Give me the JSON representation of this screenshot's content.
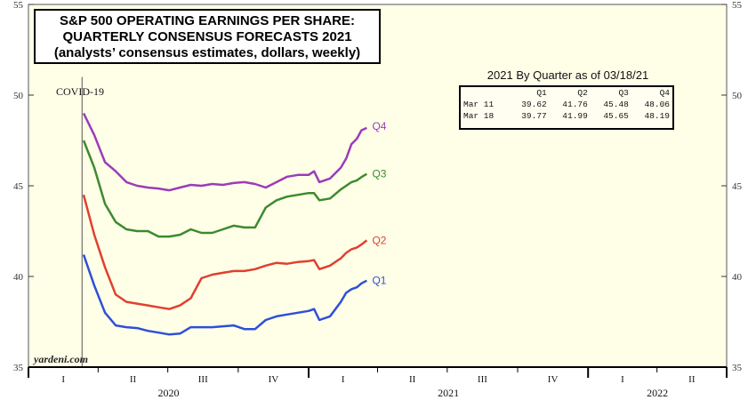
{
  "title_lines": [
    "S&P 500 OPERATING EARNINGS PER SHARE:",
    "QUARTERLY CONSENSUS FORECASTS 2021",
    "(analysts’ consensus estimates, dollars, weekly)"
  ],
  "annotation": "COVID-19",
  "watermark": "yardeni.com",
  "table": {
    "title": "2021 By Quarter as of 03/18/21",
    "headers": [
      "",
      "Q1",
      "Q2",
      "Q3",
      "Q4"
    ],
    "rows": [
      [
        "Mar 11",
        "39.62",
        "41.76",
        "45.48",
        "48.06"
      ],
      [
        "Mar 18",
        "39.77",
        "41.99",
        "45.65",
        "48.19"
      ]
    ]
  },
  "colors": {
    "background": "#FFFFE8",
    "Q1": "#2E4FD8",
    "Q2": "#E0402E",
    "Q3": "#3C8A2E",
    "Q4": "#9B3CB8"
  },
  "chart_data": {
    "type": "line",
    "ylim": [
      35,
      55
    ],
    "yticks": [
      35,
      40,
      45,
      50,
      55
    ],
    "grid": false,
    "x_quarters": [
      "I",
      "II",
      "III",
      "IV",
      "I",
      "II",
      "III",
      "IV",
      "I",
      "II"
    ],
    "x_years": [
      "2020",
      "2021",
      "2022"
    ],
    "covid_line_date": "2020-03-11",
    "series": [
      {
        "name": "Q4",
        "points": [
          [
            "2020-03-13",
            49.0
          ],
          [
            "2020-03-27",
            47.8
          ],
          [
            "2020-04-10",
            46.3
          ],
          [
            "2020-04-24",
            45.8
          ],
          [
            "2020-05-08",
            45.2
          ],
          [
            "2020-05-22",
            45.0
          ],
          [
            "2020-06-05",
            44.9
          ],
          [
            "2020-06-19",
            44.85
          ],
          [
            "2020-07-03",
            44.75
          ],
          [
            "2020-07-17",
            44.9
          ],
          [
            "2020-07-31",
            45.05
          ],
          [
            "2020-08-14",
            45.0
          ],
          [
            "2020-08-28",
            45.1
          ],
          [
            "2020-09-11",
            45.05
          ],
          [
            "2020-09-25",
            45.15
          ],
          [
            "2020-10-09",
            45.2
          ],
          [
            "2020-10-23",
            45.1
          ],
          [
            "2020-11-06",
            44.9
          ],
          [
            "2020-11-20",
            45.2
          ],
          [
            "2020-12-04",
            45.5
          ],
          [
            "2020-12-18",
            45.6
          ],
          [
            "2021-01-01",
            45.6
          ],
          [
            "2021-01-08",
            45.8
          ],
          [
            "2021-01-15",
            45.2
          ],
          [
            "2021-01-29",
            45.4
          ],
          [
            "2021-02-12",
            46.0
          ],
          [
            "2021-02-19",
            46.5
          ],
          [
            "2021-02-26",
            47.3
          ],
          [
            "2021-03-05",
            47.6
          ],
          [
            "2021-03-11",
            48.06
          ],
          [
            "2021-03-18",
            48.19
          ]
        ]
      },
      {
        "name": "Q3",
        "points": [
          [
            "2020-03-13",
            47.5
          ],
          [
            "2020-03-27",
            46.0
          ],
          [
            "2020-04-10",
            44.0
          ],
          [
            "2020-04-24",
            43.0
          ],
          [
            "2020-05-08",
            42.6
          ],
          [
            "2020-05-22",
            42.5
          ],
          [
            "2020-06-05",
            42.5
          ],
          [
            "2020-06-19",
            42.2
          ],
          [
            "2020-07-03",
            42.2
          ],
          [
            "2020-07-17",
            42.3
          ],
          [
            "2020-07-31",
            42.6
          ],
          [
            "2020-08-14",
            42.4
          ],
          [
            "2020-08-28",
            42.4
          ],
          [
            "2020-09-11",
            42.6
          ],
          [
            "2020-09-25",
            42.8
          ],
          [
            "2020-10-09",
            42.7
          ],
          [
            "2020-10-23",
            42.7
          ],
          [
            "2020-11-06",
            43.8
          ],
          [
            "2020-11-20",
            44.2
          ],
          [
            "2020-12-04",
            44.4
          ],
          [
            "2020-12-18",
            44.5
          ],
          [
            "2021-01-01",
            44.6
          ],
          [
            "2021-01-08",
            44.6
          ],
          [
            "2021-01-15",
            44.2
          ],
          [
            "2021-01-29",
            44.3
          ],
          [
            "2021-02-12",
            44.8
          ],
          [
            "2021-02-19",
            45.0
          ],
          [
            "2021-02-26",
            45.2
          ],
          [
            "2021-03-05",
            45.3
          ],
          [
            "2021-03-11",
            45.48
          ],
          [
            "2021-03-18",
            45.65
          ]
        ]
      },
      {
        "name": "Q2",
        "points": [
          [
            "2020-03-13",
            44.5
          ],
          [
            "2020-03-27",
            42.3
          ],
          [
            "2020-04-10",
            40.5
          ],
          [
            "2020-04-24",
            39.0
          ],
          [
            "2020-05-08",
            38.6
          ],
          [
            "2020-05-22",
            38.5
          ],
          [
            "2020-06-05",
            38.4
          ],
          [
            "2020-06-19",
            38.3
          ],
          [
            "2020-07-03",
            38.2
          ],
          [
            "2020-07-17",
            38.4
          ],
          [
            "2020-07-31",
            38.8
          ],
          [
            "2020-08-14",
            39.9
          ],
          [
            "2020-08-28",
            40.1
          ],
          [
            "2020-09-11",
            40.2
          ],
          [
            "2020-09-25",
            40.3
          ],
          [
            "2020-10-09",
            40.3
          ],
          [
            "2020-10-23",
            40.4
          ],
          [
            "2020-11-06",
            40.6
          ],
          [
            "2020-11-20",
            40.75
          ],
          [
            "2020-12-04",
            40.7
          ],
          [
            "2020-12-18",
            40.8
          ],
          [
            "2021-01-01",
            40.85
          ],
          [
            "2021-01-08",
            40.9
          ],
          [
            "2021-01-15",
            40.4
          ],
          [
            "2021-01-29",
            40.6
          ],
          [
            "2021-02-12",
            41.0
          ],
          [
            "2021-02-19",
            41.3
          ],
          [
            "2021-02-26",
            41.5
          ],
          [
            "2021-03-05",
            41.6
          ],
          [
            "2021-03-11",
            41.76
          ],
          [
            "2021-03-18",
            41.99
          ]
        ]
      },
      {
        "name": "Q1",
        "points": [
          [
            "2020-03-13",
            41.2
          ],
          [
            "2020-03-27",
            39.5
          ],
          [
            "2020-04-10",
            38.0
          ],
          [
            "2020-04-24",
            37.3
          ],
          [
            "2020-05-08",
            37.2
          ],
          [
            "2020-05-22",
            37.15
          ],
          [
            "2020-06-05",
            37.0
          ],
          [
            "2020-06-19",
            36.9
          ],
          [
            "2020-07-03",
            36.8
          ],
          [
            "2020-07-17",
            36.85
          ],
          [
            "2020-07-31",
            37.2
          ],
          [
            "2020-08-14",
            37.2
          ],
          [
            "2020-08-28",
            37.2
          ],
          [
            "2020-09-11",
            37.25
          ],
          [
            "2020-09-25",
            37.3
          ],
          [
            "2020-10-09",
            37.1
          ],
          [
            "2020-10-23",
            37.1
          ],
          [
            "2020-11-06",
            37.6
          ],
          [
            "2020-11-20",
            37.8
          ],
          [
            "2020-12-04",
            37.9
          ],
          [
            "2020-12-18",
            38.0
          ],
          [
            "2021-01-01",
            38.1
          ],
          [
            "2021-01-08",
            38.2
          ],
          [
            "2021-01-15",
            37.6
          ],
          [
            "2021-01-29",
            37.8
          ],
          [
            "2021-02-12",
            38.6
          ],
          [
            "2021-02-19",
            39.1
          ],
          [
            "2021-02-26",
            39.3
          ],
          [
            "2021-03-05",
            39.4
          ],
          [
            "2021-03-11",
            39.62
          ],
          [
            "2021-03-18",
            39.77
          ]
        ]
      }
    ]
  }
}
